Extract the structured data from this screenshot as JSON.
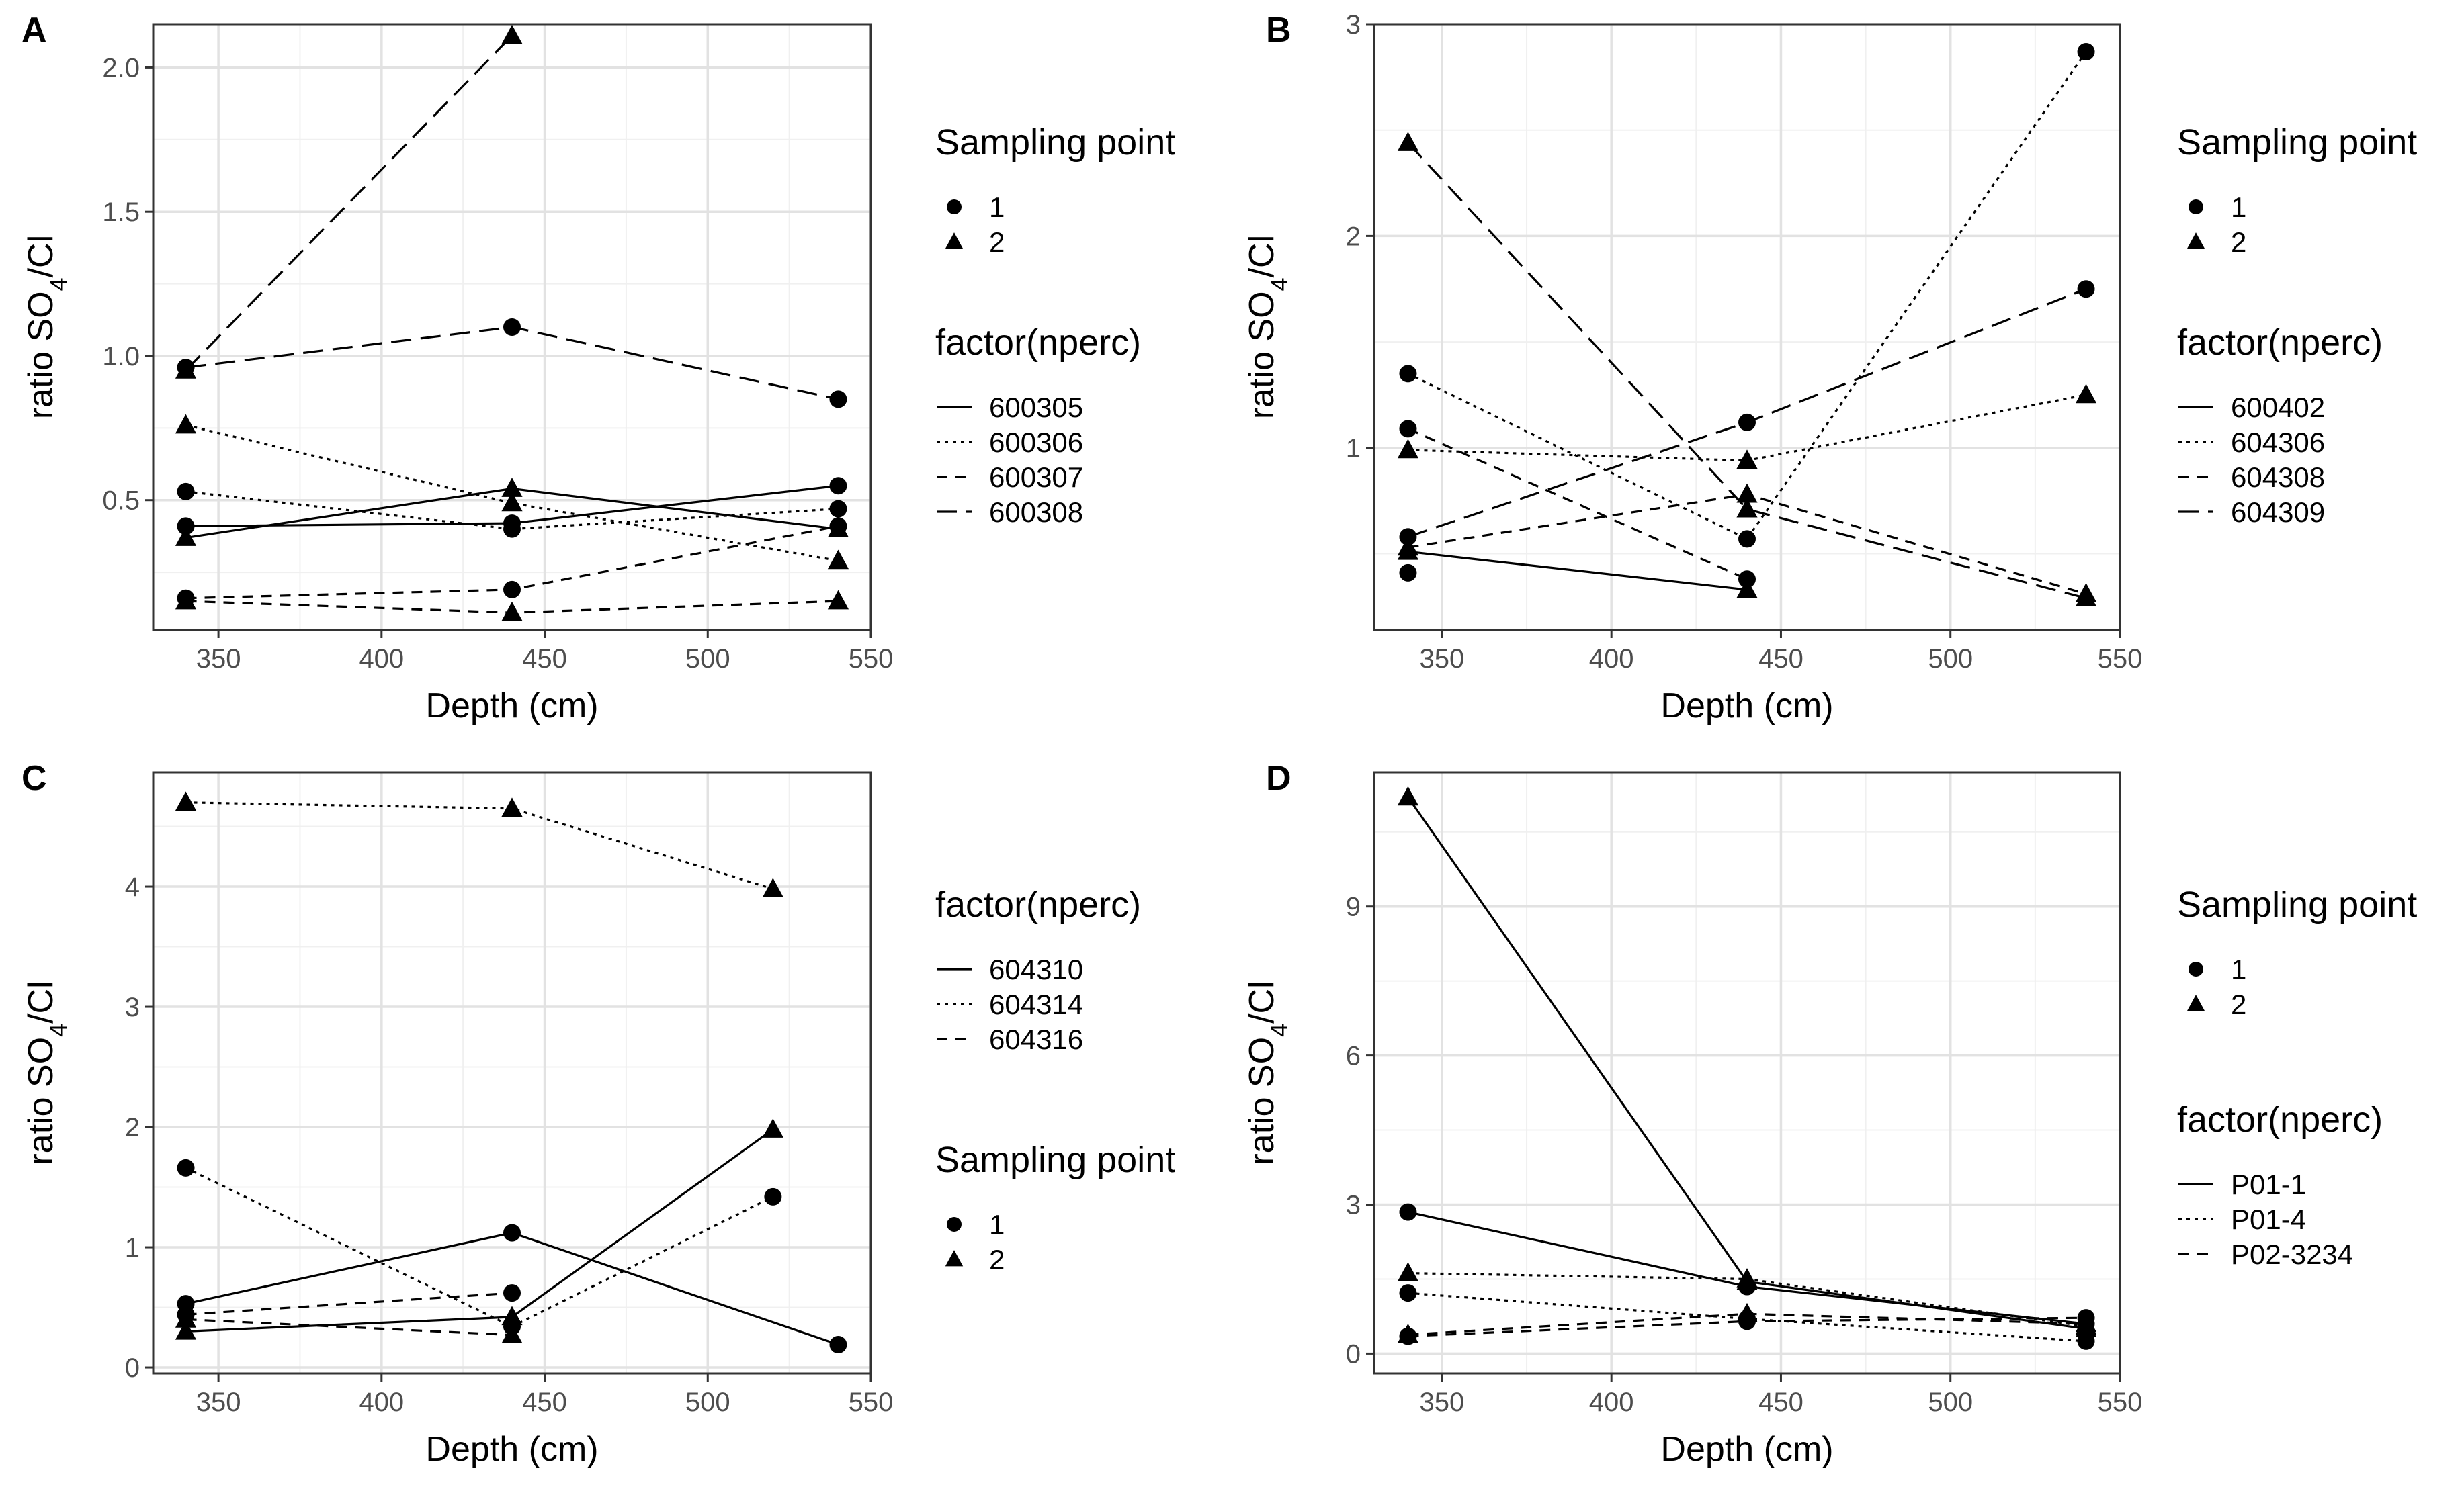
{
  "chart_data": [
    {
      "type": "line",
      "panel": "A",
      "xlabel": "Depth (cm)",
      "ylabel_prefix": "ratio SO",
      "ylabel_sub": "4",
      "ylabel_suffix": "/Cl",
      "xlim": [
        330,
        550
      ],
      "ylim": [
        0.05,
        2.15
      ],
      "xticks": [
        350,
        400,
        450,
        500,
        550
      ],
      "yticks": [
        0.5,
        1.0,
        1.5,
        2.0
      ],
      "ytick_labels": [
        "0.5",
        "1.0",
        "1.5",
        "2.0"
      ],
      "grid": true,
      "legends": [
        {
          "title": "Sampling point",
          "kind": "shape",
          "items": [
            {
              "label": "1",
              "shape": "circle"
            },
            {
              "label": "2",
              "shape": "triangle"
            }
          ]
        },
        {
          "title": "factor(nperc)",
          "kind": "line",
          "items": [
            {
              "label": "600305",
              "dash": "solid"
            },
            {
              "label": "600306",
              "dash": "dotted"
            },
            {
              "label": "600307",
              "dash": "dashed"
            },
            {
              "label": "600308",
              "dash": "longdash"
            }
          ]
        }
      ],
      "series": [
        {
          "name": "600305",
          "dash": "solid",
          "shape": "circle",
          "x": [
            340,
            440,
            540
          ],
          "y": [
            0.41,
            0.42,
            0.55
          ]
        },
        {
          "name": "600305",
          "dash": "solid",
          "shape": "triangle",
          "x": [
            340,
            440,
            540
          ],
          "y": [
            0.37,
            0.54,
            0.4
          ]
        },
        {
          "name": "600306",
          "dash": "dotted",
          "shape": "circle",
          "x": [
            340,
            440,
            540
          ],
          "y": [
            0.53,
            0.4,
            0.47
          ]
        },
        {
          "name": "600306",
          "dash": "dotted",
          "shape": "triangle",
          "x": [
            340,
            440,
            540
          ],
          "y": [
            0.76,
            0.49,
            0.29
          ]
        },
        {
          "name": "600307",
          "dash": "dashed",
          "shape": "circle",
          "x": [
            340,
            440,
            540
          ],
          "y": [
            0.16,
            0.19,
            0.41
          ]
        },
        {
          "name": "600307",
          "dash": "dashed",
          "shape": "triangle",
          "x": [
            340,
            440,
            540
          ],
          "y": [
            0.15,
            0.11,
            0.15
          ]
        },
        {
          "name": "600308",
          "dash": "longdash",
          "shape": "circle",
          "x": [
            340,
            440,
            540
          ],
          "y": [
            0.96,
            1.1,
            0.85
          ]
        },
        {
          "name": "600308",
          "dash": "longdash",
          "shape": "triangle",
          "x": [
            340,
            440
          ],
          "y": [
            0.95,
            2.11
          ]
        }
      ]
    },
    {
      "type": "line",
      "panel": "B",
      "xlabel": "Depth (cm)",
      "ylabel_prefix": "ratio SO",
      "ylabel_sub": "4",
      "ylabel_suffix": "/Cl",
      "xlim": [
        330,
        550
      ],
      "ylim": [
        0.14,
        3.0
      ],
      "xticks": [
        350,
        400,
        450,
        500,
        550
      ],
      "yticks": [
        1,
        2,
        3
      ],
      "ytick_labels": [
        "1",
        "2",
        "3"
      ],
      "grid": true,
      "legends": [
        {
          "title": "Sampling point",
          "kind": "shape",
          "items": [
            {
              "label": "1",
              "shape": "circle"
            },
            {
              "label": "2",
              "shape": "triangle"
            }
          ]
        },
        {
          "title": "factor(nperc)",
          "kind": "line",
          "items": [
            {
              "label": "600402",
              "dash": "solid"
            },
            {
              "label": "604306",
              "dash": "dotted"
            },
            {
              "label": "604308",
              "dash": "dashed"
            },
            {
              "label": "604309",
              "dash": "longdash"
            }
          ]
        }
      ],
      "series": [
        {
          "name": "600402",
          "dash": "solid",
          "shape": "circle",
          "x": [
            340
          ],
          "y": [
            0.41
          ]
        },
        {
          "name": "600402",
          "dash": "solid",
          "shape": "triangle",
          "x": [
            340,
            440
          ],
          "y": [
            0.51,
            0.33
          ]
        },
        {
          "name": "604306",
          "dash": "dotted",
          "shape": "circle",
          "x": [
            340,
            440,
            540
          ],
          "y": [
            1.35,
            0.57,
            2.87
          ]
        },
        {
          "name": "604306",
          "dash": "dotted",
          "shape": "triangle",
          "x": [
            340,
            440,
            540
          ],
          "y": [
            0.99,
            0.94,
            1.25
          ]
        },
        {
          "name": "604308",
          "dash": "dashed",
          "shape": "circle",
          "x": [
            340,
            440
          ],
          "y": [
            1.09,
            0.38
          ]
        },
        {
          "name": "604308",
          "dash": "dashed",
          "shape": "triangle",
          "x": [
            340,
            440,
            540
          ],
          "y": [
            0.53,
            0.78,
            0.31
          ]
        },
        {
          "name": "604309",
          "dash": "longdash",
          "shape": "circle",
          "x": [
            340,
            440,
            540
          ],
          "y": [
            0.58,
            1.12,
            1.75
          ]
        },
        {
          "name": "604309",
          "dash": "longdash",
          "shape": "triangle",
          "x": [
            340,
            440,
            540
          ],
          "y": [
            2.44,
            0.71,
            0.29
          ]
        }
      ]
    },
    {
      "type": "line",
      "panel": "C",
      "xlabel": "Depth (cm)",
      "ylabel_prefix": "ratio SO",
      "ylabel_sub": "4",
      "ylabel_suffix": "/Cl",
      "xlim": [
        330,
        550
      ],
      "ylim": [
        -0.05,
        4.95
      ],
      "xticks": [
        350,
        400,
        450,
        500,
        550
      ],
      "yticks": [
        0,
        1,
        2,
        3,
        4
      ],
      "ytick_labels": [
        "0",
        "1",
        "2",
        "3",
        "4"
      ],
      "grid": true,
      "legends": [
        {
          "title": "factor(nperc)",
          "kind": "line",
          "items": [
            {
              "label": "604310",
              "dash": "solid"
            },
            {
              "label": "604314",
              "dash": "dotted"
            },
            {
              "label": "604316",
              "dash": "dashed"
            }
          ]
        },
        {
          "title": "Sampling point",
          "kind": "shape",
          "items": [
            {
              "label": "1",
              "shape": "circle"
            },
            {
              "label": "2",
              "shape": "triangle"
            }
          ]
        }
      ],
      "series": [
        {
          "name": "604310",
          "dash": "solid",
          "shape": "circle",
          "x": [
            340,
            440,
            540
          ],
          "y": [
            0.53,
            1.12,
            0.19
          ]
        },
        {
          "name": "604310",
          "dash": "solid",
          "shape": "triangle",
          "x": [
            340,
            440,
            520
          ],
          "y": [
            0.3,
            0.42,
            1.98
          ]
        },
        {
          "name": "604314",
          "dash": "dotted",
          "shape": "circle",
          "x": [
            340,
            440,
            520
          ],
          "y": [
            1.66,
            0.34,
            1.42
          ]
        },
        {
          "name": "604314",
          "dash": "dotted",
          "shape": "triangle",
          "x": [
            340,
            440,
            520
          ],
          "y": [
            4.7,
            4.65,
            3.98
          ]
        },
        {
          "name": "604316",
          "dash": "dashed",
          "shape": "circle",
          "x": [
            340,
            440
          ],
          "y": [
            0.44,
            0.62
          ]
        },
        {
          "name": "604316",
          "dash": "dashed",
          "shape": "triangle",
          "x": [
            340,
            440
          ],
          "y": [
            0.4,
            0.27
          ]
        }
      ]
    },
    {
      "type": "line",
      "panel": "D",
      "xlabel": "Depth (cm)",
      "ylabel_prefix": "ratio SO",
      "ylabel_sub": "4",
      "ylabel_suffix": "/Cl",
      "xlim": [
        330,
        550
      ],
      "ylim": [
        -0.4,
        11.7
      ],
      "xticks": [
        350,
        400,
        450,
        500,
        550
      ],
      "yticks": [
        0,
        3,
        6,
        9
      ],
      "ytick_labels": [
        "0",
        "3",
        "6",
        "9"
      ],
      "grid": true,
      "legends": [
        {
          "title": "Sampling point",
          "kind": "shape",
          "items": [
            {
              "label": "1",
              "shape": "circle"
            },
            {
              "label": "2",
              "shape": "triangle"
            }
          ]
        },
        {
          "title": "factor(nperc)",
          "kind": "line",
          "items": [
            {
              "label": "P01-1",
              "dash": "solid"
            },
            {
              "label": "P01-4",
              "dash": "dotted"
            },
            {
              "label": "P02-3234",
              "dash": "dashed"
            }
          ]
        }
      ],
      "series": [
        {
          "name": "P01-1",
          "dash": "solid",
          "shape": "circle",
          "x": [
            340,
            440,
            540
          ],
          "y": [
            2.85,
            1.35,
            0.6
          ]
        },
        {
          "name": "P01-1",
          "dash": "solid",
          "shape": "triangle",
          "x": [
            340,
            440,
            540
          ],
          "y": [
            11.2,
            1.45,
            0.5
          ]
        },
        {
          "name": "P01-4",
          "dash": "dotted",
          "shape": "circle",
          "x": [
            340,
            440,
            540
          ],
          "y": [
            1.22,
            0.7,
            0.25
          ]
        },
        {
          "name": "P01-4",
          "dash": "dotted",
          "shape": "triangle",
          "x": [
            340,
            440,
            540
          ],
          "y": [
            1.62,
            1.5,
            0.55
          ]
        },
        {
          "name": "P02-3234",
          "dash": "dashed",
          "shape": "circle",
          "x": [
            340,
            440,
            540
          ],
          "y": [
            0.35,
            0.65,
            0.72
          ]
        },
        {
          "name": "P02-3234",
          "dash": "dashed",
          "shape": "triangle",
          "x": [
            340,
            440,
            540
          ],
          "y": [
            0.38,
            0.8,
            0.6
          ]
        }
      ]
    }
  ]
}
